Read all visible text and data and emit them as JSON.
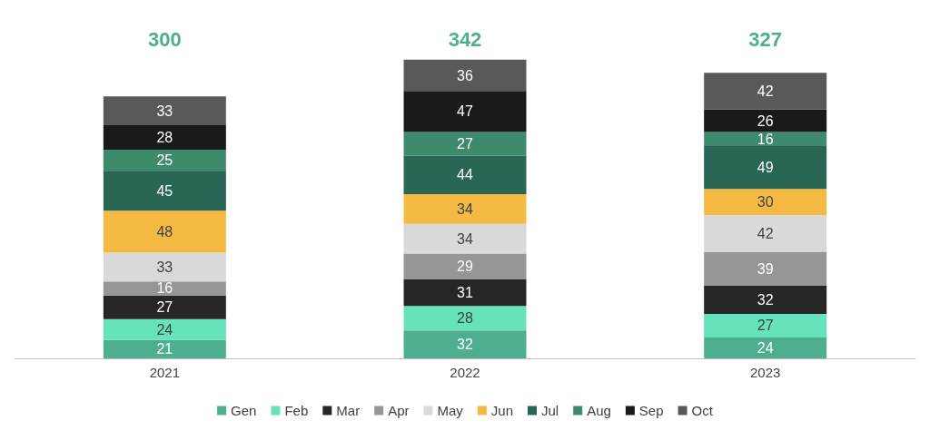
{
  "chart_data": {
    "type": "bar",
    "stacked": true,
    "data_labels": true,
    "legend": "bottom",
    "categories": [
      "2021",
      "2022",
      "2023"
    ],
    "totals": [
      "300",
      "342",
      "327"
    ],
    "series": [
      {
        "name": "Gen",
        "color": "#4daf8f",
        "values": [
          21,
          32,
          24
        ]
      },
      {
        "name": "Feb",
        "color": "#66e3bd",
        "values": [
          24,
          28,
          27
        ]
      },
      {
        "name": "Mar",
        "color": "#262626",
        "values": [
          27,
          31,
          32
        ]
      },
      {
        "name": "Apr",
        "color": "#969696",
        "values": [
          16,
          29,
          39
        ]
      },
      {
        "name": "May",
        "color": "#d9d9d9",
        "values": [
          33,
          34,
          42
        ]
      },
      {
        "name": "Jun",
        "color": "#f4b942",
        "values": [
          48,
          34,
          30
        ]
      },
      {
        "name": "Jul",
        "color": "#2a6656",
        "values": [
          45,
          44,
          49
        ]
      },
      {
        "name": "Aug",
        "color": "#3d8a6c",
        "values": [
          25,
          27,
          16
        ]
      },
      {
        "name": "Sep",
        "color": "#1a1a1a",
        "values": [
          28,
          47,
          26
        ]
      },
      {
        "name": "Oct",
        "color": "#595959",
        "values": [
          33,
          36,
          42
        ]
      }
    ]
  }
}
